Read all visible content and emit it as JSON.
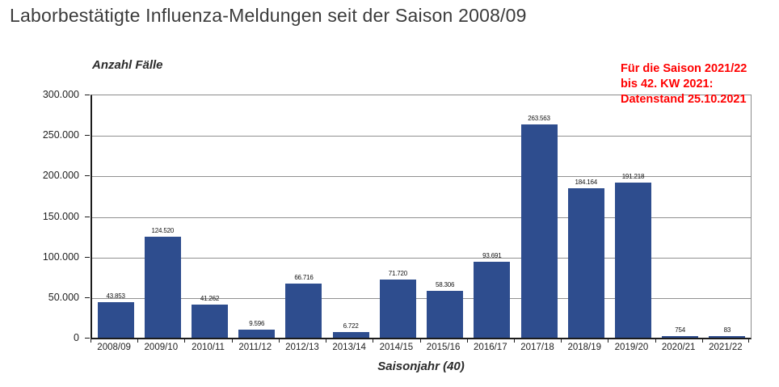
{
  "page_title": "Laborbestätigte Influenza-Meldungen seit der Saison 2008/09",
  "annotation": {
    "line1": "Für die Saison 2021/22",
    "line2": "bis 42. KW 2021:",
    "line3": "Datenstand 25.10.2021",
    "color": "#ff0000"
  },
  "chart_data": {
    "type": "bar",
    "title": "",
    "ylabel": "Anzahl Fälle",
    "xlabel": "Saisonjahr (40)",
    "categories": [
      "2008/09",
      "2009/10",
      "2010/11",
      "2011/12",
      "2012/13",
      "2013/14",
      "2014/15",
      "2015/16",
      "2016/17",
      "2017/18",
      "2018/19",
      "2019/20",
      "2020/21",
      "2021/22"
    ],
    "values": [
      43853,
      124520,
      41262,
      9596,
      66716,
      6722,
      71720,
      58306,
      93691,
      263563,
      184164,
      191218,
      754,
      83
    ],
    "value_labels": [
      "43.853",
      "124.520",
      "41.262",
      "9.596",
      "66.716",
      "6.722",
      "71.720",
      "58.306",
      "93.691",
      "263.563",
      "184.164",
      "191.218",
      "754",
      "83"
    ],
    "y_ticks": [
      {
        "value": 300000,
        "label": "300.000"
      },
      {
        "value": 250000,
        "label": "250.000"
      },
      {
        "value": 200000,
        "label": "200.000"
      },
      {
        "value": 150000,
        "label": "150.000"
      },
      {
        "value": 100000,
        "label": "100.000"
      },
      {
        "value": 50000,
        "label": "50.000"
      },
      {
        "value": 0,
        "label": "0"
      }
    ],
    "ylim": [
      0,
      300000
    ],
    "bar_color": "#2E4D8E",
    "grid": true,
    "legend_position": "none"
  }
}
